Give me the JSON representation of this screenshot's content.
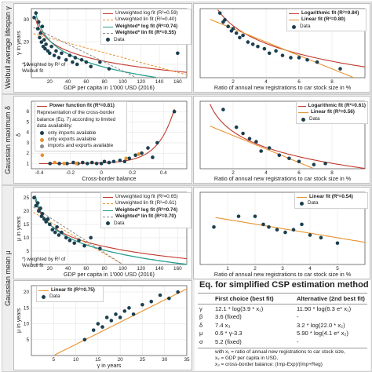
{
  "colors": {
    "red": "#c0392b",
    "orange": "#e8922e",
    "teal": "#2a9d8f",
    "gray": "#8a8a8a",
    "dot": "#1c3f4f",
    "orange_dot": "#e8922e"
  },
  "bands": [
    {
      "label": "Weibull average lifespan γ"
    },
    {
      "label": "Gaussian maximum δ"
    },
    {
      "label": "Gaussian mean μ"
    }
  ],
  "chart_data": [
    {
      "id": "p1",
      "type": "scatter",
      "xlabel": "GDP per capita in 1'000 USD (2016)",
      "ylabel": "γ in years",
      "xlim": [
        0,
        170
      ],
      "ylim": [
        4,
        35
      ],
      "xticks": [
        20,
        40,
        60,
        80,
        100,
        120,
        140,
        160
      ],
      "yticks": [
        10,
        20,
        30
      ],
      "points": {
        "x": [
          3,
          5,
          7,
          8,
          9,
          10,
          11,
          12,
          13,
          14,
          15,
          16,
          18,
          20,
          22,
          25,
          27,
          30,
          33,
          38,
          42,
          45,
          48,
          50,
          55,
          60,
          65,
          75,
          85,
          160
        ],
        "y": [
          31,
          33,
          26,
          29,
          22,
          24,
          20,
          27,
          18,
          21,
          17,
          19,
          16,
          15,
          18,
          14,
          16,
          13,
          15,
          12,
          14,
          11,
          13,
          10,
          12,
          11,
          9,
          11,
          8,
          15
        ]
      },
      "fits": [
        {
          "name": "Unweighted log fit (R²=0.59)",
          "style": "red-solid",
          "model": "log",
          "a": 40.3,
          "b": -6.6
        },
        {
          "name": "Unweighted lin fit (R²=0.40)",
          "style": "orange-dash",
          "model": "lin",
          "a": 24,
          "b": -0.11
        },
        {
          "name": "Weighted* log fit (R²=0.74)",
          "style": "teal-solid",
          "model": "log",
          "a": 46.4,
          "b": -8.6
        },
        {
          "name": "Weighted* lin fit (R²=0.55)",
          "style": "gray-dash",
          "model": "lin",
          "a": 27,
          "b": -0.2
        }
      ],
      "legend": [
        "Unweighted log fit (R²=0.59)",
        "Unweighted lin fit (R²=0.40)",
        "Weighted* log fit (R²=0.74)",
        "Weighted* lin fit (R²=0.55)",
        "Data"
      ],
      "note": "*) weighted by R² of Weibull fit"
    },
    {
      "id": "p2",
      "type": "scatter",
      "xlabel": "Ratio of annual new registrations to car stock size in %",
      "ylabel": "",
      "xlim": [
        0,
        10
      ],
      "ylim": [
        4,
        35
      ],
      "xticks": [
        2,
        4,
        6,
        8
      ],
      "yticks": [],
      "points": {
        "x": [
          1.2,
          1.4,
          1.5,
          1.7,
          1.9,
          2.0,
          2.2,
          2.4,
          2.6,
          2.9,
          3.2,
          3.5,
          3.9,
          4.2,
          4.6,
          5.0,
          5.5,
          6.0,
          6.5,
          7.1,
          8.5
        ],
        "y": [
          33,
          29,
          30,
          27,
          25,
          26,
          24,
          22,
          23,
          20,
          19,
          18,
          17,
          15,
          16,
          14,
          13,
          13,
          12,
          11,
          8
        ]
      },
      "fits": [
        {
          "name": "Logarithmic fit (R²=0.84)",
          "style": "red-solid",
          "model": "log",
          "a": 35.3,
          "b": -11.5
        },
        {
          "name": "Linear fit (R²=0.80)",
          "style": "orange-solid",
          "model": "lin",
          "a": 32,
          "b": -3.0
        }
      ],
      "legend": [
        "Logarithmic fit (R²=0.84)",
        "Linear fit (R²=0.80)",
        "Data"
      ]
    },
    {
      "id": "p3",
      "type": "scatter",
      "xlabel": "Cross-border balance",
      "ylabel": "δ",
      "xlim": [
        -0.45,
        0.55
      ],
      "ylim": [
        0.5,
        7
      ],
      "xticks": [
        -0.4,
        -0.2,
        0.0,
        0.2,
        0.4
      ],
      "yticks": [
        1,
        2,
        3,
        4,
        5,
        6
      ],
      "points": {
        "x": [
          -0.33,
          -0.27,
          -0.22,
          -0.18,
          -0.15,
          -0.12,
          -0.09,
          -0.06,
          -0.03,
          0.0,
          0.02,
          0.05,
          0.08,
          0.12,
          0.15,
          0.18,
          0.22,
          0.26,
          0.3,
          0.33,
          0.36,
          0.47
        ],
        "y": [
          1.0,
          1.0,
          1.0,
          1.1,
          1.0,
          1.1,
          1.0,
          1.1,
          1.0,
          1.0,
          1.2,
          1.1,
          1.2,
          1.3,
          1.2,
          1.5,
          1.8,
          2.0,
          2.5,
          1.6,
          3.0,
          6.0
        ]
      },
      "orange_points": {
        "x": [
          -0.38,
          -0.3,
          -0.24,
          -0.16,
          0.16,
          0.24
        ],
        "y": [
          1.8,
          1.1,
          1.0,
          1.0,
          1.5,
          1.9
        ]
      },
      "fits": [
        {
          "name": "Power function fit (R²=0.81)",
          "style": "red-solid",
          "model": "exp",
          "a": 1.0,
          "b": 0.0
        }
      ],
      "legend": [
        "Power function fit (R²=0.81)"
      ],
      "note_head": "Representation of the cross-border balance (Eq. 7) according to limited data availability:",
      "legend_extra": [
        "only imports available",
        "only exports available",
        "imports and exports available"
      ]
    },
    {
      "id": "p4",
      "type": "scatter",
      "xlabel": "Ratio of annual new registrations to car stock size in %",
      "ylabel": "",
      "xlim": [
        0,
        10
      ],
      "ylim": [
        0.5,
        7
      ],
      "xticks": [
        2,
        4,
        6,
        8
      ],
      "yticks": [],
      "points": {
        "x": [
          1.4,
          2.2,
          2.6,
          3.0,
          3.4,
          3.7,
          4.2,
          4.8,
          5.4,
          6.0,
          6.9,
          7.6
        ],
        "y": [
          6.2,
          4.5,
          3.9,
          3.4,
          3.1,
          2.2,
          2.5,
          1.8,
          1.5,
          1.2,
          0.9,
          1.0
        ]
      },
      "fits": [
        {
          "name": "Logarithmic fit (R²=0.61)",
          "style": "red-solid",
          "model": "log",
          "a": 5.6,
          "b": -2.2
        },
        {
          "name": "Linear fit (R²=0.56)",
          "style": "orange-solid",
          "model": "lin",
          "a": 5.0,
          "b": -0.65
        }
      ],
      "legend": [
        "Logarithmic fit (R²=0.61)",
        "Linear fit (R²=0.56)",
        "Data"
      ]
    },
    {
      "id": "p5",
      "type": "scatter",
      "xlabel": "GDP per capita in 1'000 USD (2016)",
      "ylabel": "μ in years",
      "xlim": [
        0,
        170
      ],
      "ylim": [
        0,
        27
      ],
      "xticks": [
        20,
        40,
        60,
        80,
        100,
        120,
        140,
        160
      ],
      "yticks": [
        5,
        10,
        15,
        20,
        25
      ],
      "points": {
        "x": [
          3,
          5,
          7,
          8,
          10,
          11,
          12,
          14,
          16,
          18,
          20,
          23,
          26,
          28,
          30,
          33,
          38,
          42,
          47,
          52,
          58,
          65,
          75
        ],
        "y": [
          25,
          22,
          23,
          20,
          21,
          18,
          19,
          17,
          16,
          17,
          15,
          13,
          12,
          14,
          11,
          12,
          10,
          9,
          8,
          9,
          7,
          10,
          6
        ]
      },
      "fits": [
        {
          "name": "Unweighted log fit (R²=0.65)",
          "style": "red-solid",
          "model": "log",
          "a": 33,
          "b": -6.0
        },
        {
          "name": "Unweighted lin fit (R²=0.61)",
          "style": "orange-dash",
          "model": "lin",
          "a": 20,
          "b": -0.2
        },
        {
          "name": "Weighted* log fit (R²=0.74)",
          "style": "teal-solid",
          "model": "log",
          "a": 36,
          "b": -7.0
        },
        {
          "name": "Weighted* lin fit (R²=0.70)",
          "style": "gray-dash",
          "model": "lin",
          "a": 22,
          "b": -0.22
        }
      ],
      "legend": [
        "Unweighted log fit (R²=0.65)",
        "Unweighted lin fit (R²=0.61)",
        "Weighted* log fit (R²=0.74)",
        "Weighted* lin fit (R²=0.70)",
        "Data"
      ],
      "note": "*) weighted by R² of Weibull fit"
    },
    {
      "id": "p6",
      "type": "scatter",
      "xlabel": "Ratio of annual new registrations to car stock size in %",
      "ylabel": "",
      "xlim": [
        0,
        6
      ],
      "ylim": [
        0,
        27
      ],
      "xticks": [
        1,
        2,
        3,
        4,
        5
      ],
      "yticks": [],
      "points": {
        "x": [
          0.5,
          1.4,
          2.0,
          2.3,
          2.5,
          2.8,
          3.1,
          3.4,
          3.7,
          4.0,
          4.4,
          5.0
        ],
        "y": [
          14,
          18,
          18,
          15,
          14,
          13,
          12,
          13,
          15,
          11,
          10,
          8
        ]
      },
      "fits": [
        {
          "name": "Linear fit (R²=0.54)",
          "style": "orange-solid",
          "model": "lin",
          "a": 18.5,
          "b": -1.7
        }
      ],
      "legend": [
        "Linear fit (R²=0.54)",
        "Data"
      ]
    },
    {
      "id": "p7",
      "type": "scatter",
      "xlabel": "γ in years",
      "ylabel": "μ in years",
      "xlim": [
        0,
        35
      ],
      "ylim": [
        0,
        22
      ],
      "xticks": [
        5,
        10,
        15,
        20,
        25,
        30,
        35
      ],
      "yticks": [
        5,
        10,
        15,
        20
      ],
      "points": {
        "x": [
          12,
          14,
          15,
          16,
          17,
          18,
          19,
          20,
          21,
          22,
          23,
          25,
          27,
          29,
          31,
          33
        ],
        "y": [
          5,
          8,
          10,
          9,
          12,
          11,
          13,
          12,
          14,
          15,
          13,
          16,
          17,
          19,
          18,
          20
        ]
      },
      "fits": [
        {
          "name": "Linear fit (R²=0.75)",
          "style": "orange-solid",
          "model": "lin",
          "a": -3.5,
          "b": 0.7
        }
      ],
      "legend": [
        "Linear fit (R²=0.75)",
        "Data"
      ]
    }
  ],
  "eq_table": {
    "title": "Eq. for simplified CSP estimation method",
    "col1": "First choice (best fit)",
    "col2": "Alternative (2nd best fit)",
    "rows": [
      {
        "sym": "γ",
        "c1": "12.1 * log(3.9 * x₁)",
        "c2": "11.90 * log(6.3 e* x₁)"
      },
      {
        "sym": "β",
        "c1": "3.6 (fixed)",
        "c2": "-"
      },
      {
        "sym": "δ",
        "c1": "7.4 x₃",
        "c2": "3.2 * log(22.0 * x₂)"
      },
      {
        "sym": "μ",
        "c1": "0.6 * γ-3.3",
        "c2": "5.90 * log(4.1 e* x₂)"
      },
      {
        "sym": "σ",
        "c1": "5.2 (fixed)",
        "c2": "-"
      }
    ],
    "foot1": "with x₁ = ratio of annual new registrations to car stock size,",
    "foot2": "x₂ = GDP per capita in USD,",
    "foot3": "x₃ = cross-border balance: (Imp-Exp)/(Imp+Reg)"
  }
}
